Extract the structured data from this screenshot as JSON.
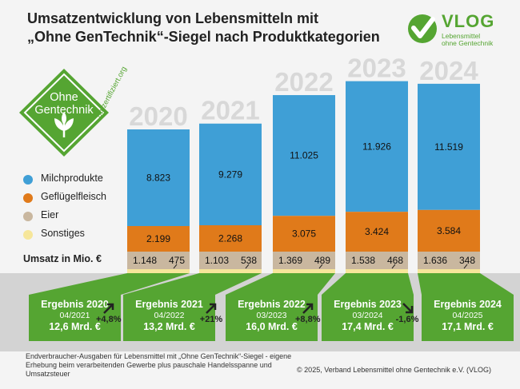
{
  "title": {
    "line1": "Umsatzentwicklung von Lebensmitteln mit",
    "line2": "„Ohne GenTechnik“-Siegel nach Produktkategorien"
  },
  "logo": {
    "name": "VLOG",
    "tagline1": "Lebensmittel",
    "tagline2": "ohne Gentechnik"
  },
  "badge": {
    "line1": "Ohne",
    "line2": "Gentechnik",
    "url": "og-zertifiziert.org"
  },
  "legend": [
    {
      "label": "Milchprodukte",
      "color": "#3f9fd6"
    },
    {
      "label": "Geflügelfleisch",
      "color": "#e07a1a"
    },
    {
      "label": "Eier",
      "color": "#c9b79f"
    },
    {
      "label": "Sonstiges",
      "color": "#f6e69a"
    }
  ],
  "unit_label": "Umsatz in Mio. €",
  "chart_data": {
    "type": "bar",
    "stacked": true,
    "categories": [
      "2020",
      "2021",
      "2022",
      "2023",
      "2024"
    ],
    "series": [
      {
        "name": "Sonstiges",
        "values": [
          475,
          538,
          489,
          468,
          348
        ],
        "labels": [
          "475",
          "538",
          "489",
          "468",
          "348"
        ],
        "color": "#f6e69a"
      },
      {
        "name": "Eier",
        "values": [
          1148,
          1103,
          1369,
          1538,
          1636
        ],
        "labels": [
          "1.148",
          "1.103",
          "1.369",
          "1.538",
          "1.636"
        ],
        "color": "#c9b79f"
      },
      {
        "name": "Geflügelfleisch",
        "values": [
          2199,
          2268,
          3075,
          3424,
          3584
        ],
        "labels": [
          "2.199",
          "2.268",
          "3.075",
          "3.424",
          "3.584"
        ],
        "color": "#e07a1a"
      },
      {
        "name": "Milchprodukte",
        "values": [
          8823,
          9279,
          11025,
          11926,
          11519
        ],
        "labels": [
          "8.823",
          "9.279",
          "11.025",
          "11.926",
          "11.519"
        ],
        "color": "#3f9fd6"
      }
    ],
    "ylabel": "Umsatz in Mio. €",
    "grid": false,
    "legend_position": "left"
  },
  "results": [
    {
      "head": "Ergebnis 2020",
      "date": "04/2021",
      "total": "12,6 Mrd. €"
    },
    {
      "head": "Ergebnis 2021",
      "date": "04/2022",
      "total": "13,2 Mrd. €"
    },
    {
      "head": "Ergebnis 2022",
      "date": "03/2023",
      "total": "16,0 Mrd. €"
    },
    {
      "head": "Ergebnis 2023",
      "date": "03/2024",
      "total": "17,4 Mrd. €"
    },
    {
      "head": "Ergebnis 2024",
      "date": "04/2025",
      "total": "17,1 Mrd. €"
    }
  ],
  "growth": [
    {
      "label": "+4,8%",
      "direction": "up"
    },
    {
      "label": "+21%",
      "direction": "up"
    },
    {
      "label": "+8,8%",
      "direction": "up"
    },
    {
      "label": "-1,6%",
      "direction": "down"
    }
  ],
  "footnote": "Endverbraucher-Ausgaben für Lebensmittel mit „Ohne GenTechnik“-Siegel - eigene Erhebung beim verarbeitenden Gewerbe plus pauschale Handelsspanne und Umsatzsteuer",
  "copyright": "© 2025, Verband Lebensmittel ohne Gentechnik e.V. (VLOG)",
  "colors": {
    "green": "#55a532",
    "blue": "#3f9fd6",
    "orange": "#e07a1a"
  }
}
